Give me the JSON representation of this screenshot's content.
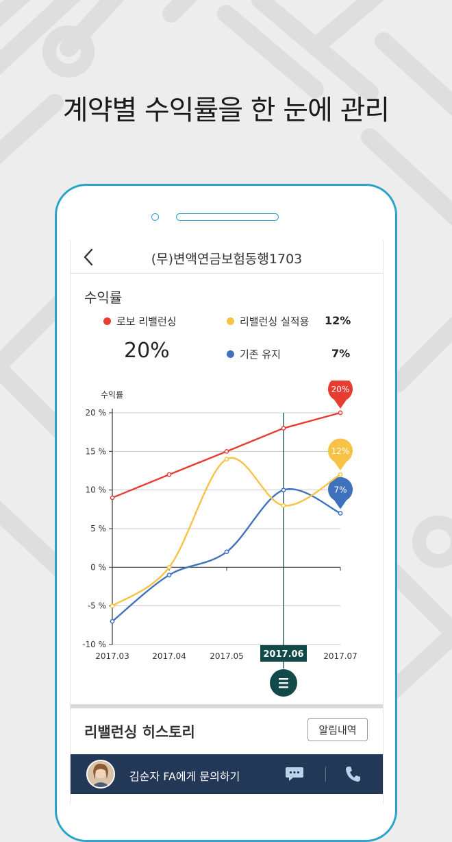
{
  "headline": "계약별 수익률을 한 눈에 관리",
  "topbar": {
    "title": "(무)변액연금보험동행1703"
  },
  "section_title": "수익률",
  "legend": {
    "robo": {
      "label": "로보 리밸런싱",
      "value": "20%",
      "color": "#e63c32"
    },
    "applied": {
      "label": "리밸런싱 실적용",
      "value": "12%",
      "color": "#f7c245"
    },
    "keep": {
      "label": "기존 유지",
      "value": "7%",
      "color": "#3f72bd"
    }
  },
  "chart_data": {
    "type": "line",
    "ylabel": "수익률",
    "x": [
      "2017.03",
      "2017.04",
      "2017.05",
      "2017.06",
      "2017.07"
    ],
    "selected_x": "2017.06",
    "ylim": [
      -10,
      20
    ],
    "ytick_labels": [
      "20 %",
      "15 %",
      "10 %",
      "5 %",
      "0 %",
      "-5 %",
      "-10 %"
    ],
    "series": [
      {
        "key": "robo",
        "values": [
          9,
          12,
          15,
          18,
          20
        ],
        "color": "#e63c32",
        "end_label": "20%"
      },
      {
        "key": "applied",
        "values": [
          -5,
          0,
          14,
          8,
          12
        ],
        "color": "#f7c245",
        "end_label": "12%"
      },
      {
        "key": "keep",
        "values": [
          -7,
          -1,
          2,
          10,
          7
        ],
        "color": "#3f72bd",
        "end_label": "7%"
      }
    ]
  },
  "history": {
    "title": "리밸런싱 히스토리",
    "button_label": "알림내역"
  },
  "contact": {
    "text": "김순자 FA에게 문의하기"
  },
  "icons": {
    "back": "chevron-left-icon",
    "menu": "menu-icon",
    "chat": "chat-icon",
    "phone": "phone-icon"
  },
  "colors": {
    "accent": "#2aa3c9",
    "navy": "#233757",
    "marker": "#124a4a"
  }
}
